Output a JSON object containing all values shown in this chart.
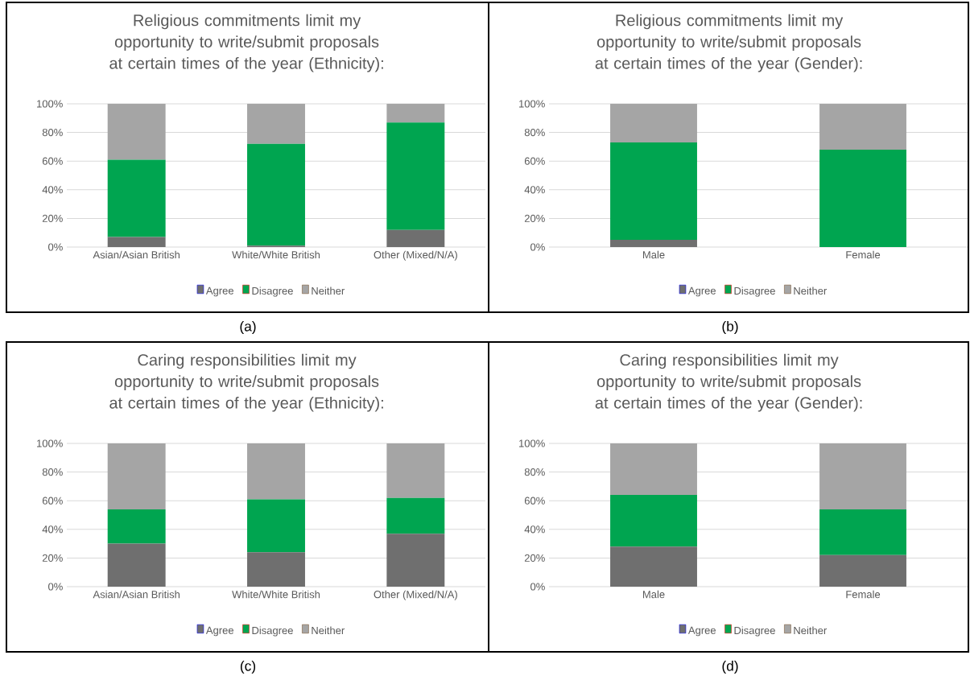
{
  "chart_data": [
    {
      "type": "bar",
      "stacked": true,
      "title": "Religious commitments limit my opportunity to write/submit proposals at certain times of the year (Ethnicity):",
      "categories": [
        "Asian/Asian British",
        "White/White British",
        "Other (Mixed/N/A)"
      ],
      "series": [
        {
          "name": "Agree",
          "color": "#6f6f6f",
          "values": [
            7,
            1,
            12
          ]
        },
        {
          "name": "Disagree",
          "color": "#00a550",
          "values": [
            54,
            71,
            75
          ]
        },
        {
          "name": "Neither",
          "color": "#a5a5a5",
          "values": [
            39,
            28,
            13
          ]
        }
      ],
      "ylim": [
        0,
        100
      ],
      "yticks": [
        {
          "value": 0,
          "label": "0%"
        },
        {
          "value": 20,
          "label": "20%"
        },
        {
          "value": 40,
          "label": "40%"
        },
        {
          "value": 60,
          "label": "60%"
        },
        {
          "value": 80,
          "label": "80%"
        },
        {
          "value": 100,
          "label": "100%"
        }
      ],
      "grid": "y",
      "legend": "bottom",
      "annotations": [
        "(a)"
      ]
    },
    {
      "type": "bar",
      "stacked": true,
      "title": "Religious commitments limit my opportunity to write/submit proposals at certain times of the year (Gender):",
      "categories": [
        "Male",
        "Female"
      ],
      "series": [
        {
          "name": "Agree",
          "color": "#6f6f6f",
          "values": [
            5,
            0
          ]
        },
        {
          "name": "Disagree",
          "color": "#00a550",
          "values": [
            68,
            68
          ]
        },
        {
          "name": "Neither",
          "color": "#a5a5a5",
          "values": [
            27,
            32
          ]
        }
      ],
      "ylim": [
        0,
        100
      ],
      "yticks": [
        {
          "value": 0,
          "label": "0%"
        },
        {
          "value": 20,
          "label": "20%"
        },
        {
          "value": 40,
          "label": "40%"
        },
        {
          "value": 60,
          "label": "60%"
        },
        {
          "value": 80,
          "label": "80%"
        },
        {
          "value": 100,
          "label": "100%"
        }
      ],
      "grid": "y",
      "legend": "bottom",
      "annotations": [
        "(b)"
      ]
    },
    {
      "type": "bar",
      "stacked": true,
      "title": "Caring responsibilities limit my opportunity to write/submit proposals at certain times of the year (Ethnicity):",
      "categories": [
        "Asian/Asian British",
        "White/White British",
        "Other (Mixed/N/A)"
      ],
      "series": [
        {
          "name": "Agree",
          "color": "#6f6f6f",
          "values": [
            30,
            24,
            37
          ]
        },
        {
          "name": "Disagree",
          "color": "#00a550",
          "values": [
            24,
            37,
            25
          ]
        },
        {
          "name": "Neither",
          "color": "#a5a5a5",
          "values": [
            46,
            39,
            38
          ]
        }
      ],
      "ylim": [
        0,
        100
      ],
      "yticks": [
        {
          "value": 0,
          "label": "0%"
        },
        {
          "value": 20,
          "label": "20%"
        },
        {
          "value": 40,
          "label": "40%"
        },
        {
          "value": 60,
          "label": "60%"
        },
        {
          "value": 80,
          "label": "80%"
        },
        {
          "value": 100,
          "label": "100%"
        }
      ],
      "grid": "y",
      "legend": "bottom",
      "annotations": [
        "(c)"
      ]
    },
    {
      "type": "bar",
      "stacked": true,
      "title": "Caring responsibilities limit my opportunity to write/submit proposals at certain times of the year (Gender):",
      "categories": [
        "Male",
        "Female"
      ],
      "series": [
        {
          "name": "Agree",
          "color": "#6f6f6f",
          "values": [
            28,
            22
          ]
        },
        {
          "name": "Disagree",
          "color": "#00a550",
          "values": [
            36,
            32
          ]
        },
        {
          "name": "Neither",
          "color": "#a5a5a5",
          "values": [
            36,
            46
          ]
        }
      ],
      "ylim": [
        0,
        100
      ],
      "yticks": [
        {
          "value": 0,
          "label": "0%"
        },
        {
          "value": 20,
          "label": "20%"
        },
        {
          "value": 40,
          "label": "40%"
        },
        {
          "value": 60,
          "label": "60%"
        },
        {
          "value": 80,
          "label": "80%"
        },
        {
          "value": 100,
          "label": "100%"
        }
      ],
      "grid": "y",
      "legend": "bottom",
      "annotations": [
        "(d)"
      ]
    }
  ]
}
